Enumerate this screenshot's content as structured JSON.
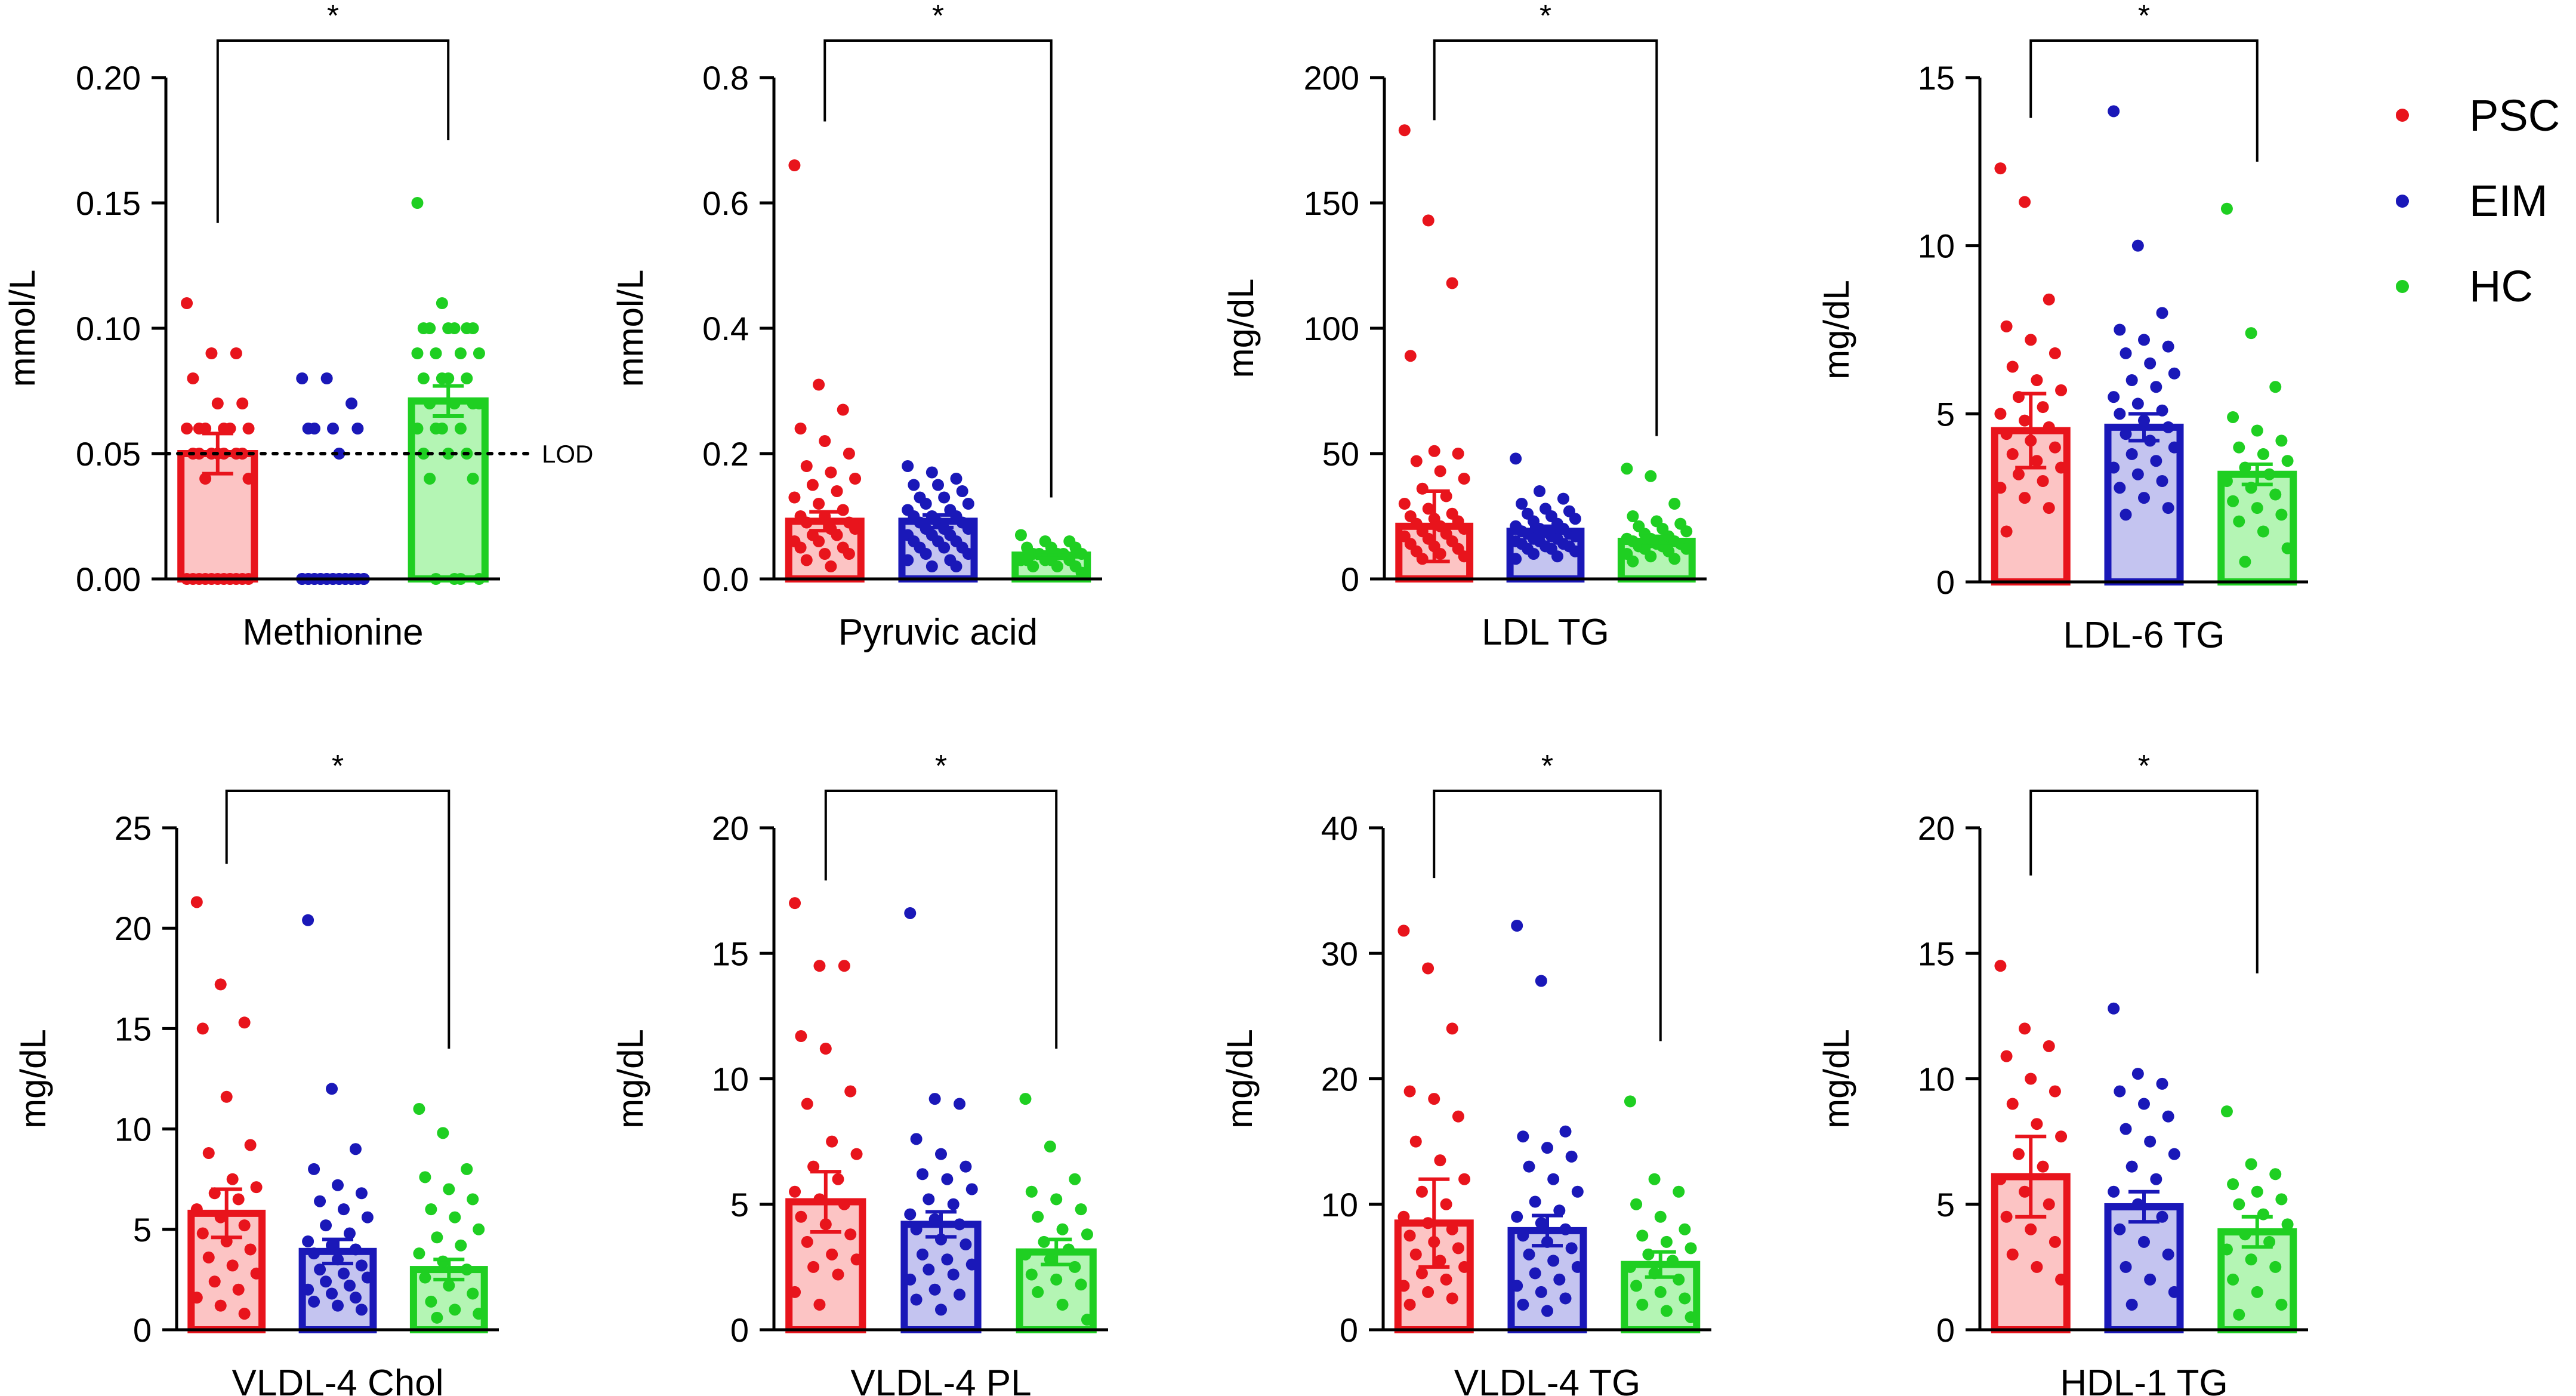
{
  "legend": [
    {
      "label": "PSC",
      "color": "#e8141c"
    },
    {
      "label": "EIM",
      "color": "#1a18b8"
    },
    {
      "label": "HC",
      "color": "#1fcf22"
    }
  ],
  "fill_colors": [
    "#fcc4c4",
    "#c4c4f0",
    "#b4f5b4"
  ],
  "chart_data": [
    {
      "type": "bar",
      "title": "Methionine",
      "ylabel": "mmol/L",
      "ylim": [
        0,
        0.2
      ],
      "ticks": [
        0,
        0.05,
        0.1,
        0.15,
        0.2
      ],
      "tick_labels": [
        "0.00",
        "0.05",
        "0.10",
        "0.15",
        "0.20"
      ],
      "categories": [
        "PSC",
        "EIM",
        "HC"
      ],
      "values": [
        0.05,
        0,
        0.071
      ],
      "error": [
        0.008,
        0,
        0.006
      ],
      "points": [
        [
          0.11,
          0.09,
          0.09,
          0.08,
          0.07,
          0.07,
          0.06,
          0.06,
          0.06,
          0.06,
          0.06,
          0.06,
          0.05,
          0.05,
          0.05,
          0.05,
          0.05,
          0.05,
          0.05,
          0.04,
          0.04,
          0,
          0,
          0,
          0,
          0,
          0,
          0,
          0,
          0,
          0,
          0,
          0
        ],
        [
          0.08,
          0.08,
          0.07,
          0.06,
          0.06,
          0.06,
          0.06,
          0.05,
          0,
          0,
          0,
          0,
          0,
          0,
          0,
          0,
          0,
          0,
          0,
          0,
          0,
          0,
          0,
          0,
          0,
          0,
          0,
          0,
          0,
          0
        ],
        [
          0.15,
          0.11,
          0.1,
          0.1,
          0.1,
          0.1,
          0.1,
          0.1,
          0.09,
          0.09,
          0.09,
          0.09,
          0.08,
          0.08,
          0.08,
          0.08,
          0.07,
          0.07,
          0.07,
          0.07,
          0.06,
          0.06,
          0.06,
          0.06,
          0.05,
          0.05,
          0.05,
          0.04,
          0.04,
          0,
          0,
          0,
          0
        ]
      ],
      "bracket": {
        "label": "*",
        "from": 0,
        "to": 2,
        "left_drop": 0.142,
        "right_drop": 0.175
      },
      "reference": {
        "label": "LOD",
        "value": 0.05
      }
    },
    {
      "type": "bar",
      "title": "Pyruvic acid",
      "ylabel": "mmol/L",
      "ylim": [
        0,
        0.8
      ],
      "ticks": [
        0,
        0.2,
        0.4,
        0.6,
        0.8
      ],
      "tick_labels": [
        "0.0",
        "0.2",
        "0.4",
        "0.6",
        "0.8"
      ],
      "categories": [
        "PSC",
        "EIM",
        "HC"
      ],
      "values": [
        0.092,
        0.092,
        0.038
      ],
      "error": [
        0.015,
        0.01,
        0.005
      ],
      "points": [
        [
          0.66,
          0.31,
          0.27,
          0.24,
          0.22,
          0.2,
          0.18,
          0.17,
          0.16,
          0.15,
          0.14,
          0.13,
          0.12,
          0.11,
          0.1,
          0.1,
          0.09,
          0.09,
          0.08,
          0.08,
          0.07,
          0.07,
          0.06,
          0.06,
          0.05,
          0.05,
          0.04,
          0.04,
          0.03,
          0.02
        ],
        [
          0.18,
          0.17,
          0.16,
          0.15,
          0.15,
          0.14,
          0.13,
          0.13,
          0.12,
          0.12,
          0.11,
          0.11,
          0.1,
          0.1,
          0.1,
          0.09,
          0.09,
          0.09,
          0.08,
          0.08,
          0.08,
          0.07,
          0.07,
          0.07,
          0.06,
          0.06,
          0.06,
          0.05,
          0.05,
          0.05,
          0.04,
          0.04,
          0.03,
          0.03,
          0.02,
          0.02
        ],
        [
          0.07,
          0.06,
          0.06,
          0.05,
          0.05,
          0.05,
          0.04,
          0.04,
          0.04,
          0.04,
          0.04,
          0.03,
          0.03,
          0.03,
          0.03,
          0.03,
          0.02,
          0.02,
          0.02,
          0.01
        ]
      ],
      "bracket": {
        "label": "*",
        "from": 0,
        "to": 2,
        "left_drop": 0.73,
        "right_drop": 0.13
      }
    },
    {
      "type": "bar",
      "title": "LDL TG",
      "ylabel": "mg/dL",
      "ylim": [
        0,
        200
      ],
      "ticks": [
        0,
        50,
        100,
        150,
        200
      ],
      "tick_labels": [
        "0",
        "50",
        "100",
        "150",
        "200"
      ],
      "categories": [
        "PSC",
        "EIM",
        "HC"
      ],
      "values": [
        21,
        19,
        15
      ],
      "error": [
        14,
        2,
        2
      ],
      "points": [
        [
          179,
          143,
          118,
          89,
          51,
          50,
          47,
          43,
          40,
          36,
          33,
          30,
          28,
          26,
          25,
          24,
          23,
          22,
          21,
          20,
          19,
          18,
          17,
          16,
          15,
          14,
          13,
          12,
          11,
          10,
          9,
          8
        ],
        [
          48,
          35,
          32,
          30,
          28,
          27,
          26,
          25,
          24,
          23,
          22,
          21,
          20,
          20,
          19,
          19,
          18,
          18,
          17,
          17,
          16,
          16,
          15,
          15,
          14,
          14,
          13,
          13,
          12,
          12,
          11,
          10,
          9,
          8
        ],
        [
          44,
          41,
          30,
          25,
          23,
          22,
          21,
          20,
          19,
          18,
          17,
          16,
          16,
          15,
          15,
          14,
          14,
          13,
          13,
          12,
          12,
          11,
          10,
          9,
          8,
          7
        ]
      ],
      "bracket": {
        "label": "*",
        "from": 0,
        "to": 2,
        "left_drop": 183,
        "right_drop": 57
      }
    },
    {
      "type": "bar",
      "title": "LDL-6 TG",
      "ylabel": "mg/dL",
      "ylim": [
        0,
        15
      ],
      "ticks": [
        0,
        5,
        10,
        15
      ],
      "tick_labels": [
        "0",
        "5",
        "10",
        "15"
      ],
      "categories": [
        "PSC",
        "EIM",
        "HC"
      ],
      "values": [
        4.5,
        4.6,
        3.2
      ],
      "error": [
        1.1,
        0.4,
        0.3
      ],
      "points": [
        [
          12.3,
          11.3,
          8.4,
          7.6,
          7.2,
          6.8,
          6.4,
          6.0,
          5.7,
          5.5,
          5.2,
          5.0,
          4.8,
          4.6,
          4.4,
          4.2,
          4.0,
          3.8,
          3.6,
          3.4,
          3.2,
          3.0,
          2.8,
          2.5,
          2.2,
          1.5
        ],
        [
          14.0,
          10.0,
          8.0,
          7.5,
          7.2,
          7.0,
          6.8,
          6.5,
          6.2,
          6.0,
          5.8,
          5.5,
          5.3,
          5.1,
          5.0,
          4.8,
          4.6,
          4.4,
          4.2,
          4.0,
          3.8,
          3.6,
          3.4,
          3.2,
          3.0,
          2.8,
          2.5,
          2.2,
          2.0
        ],
        [
          11.1,
          7.4,
          5.8,
          4.9,
          4.5,
          4.2,
          4.0,
          3.8,
          3.6,
          3.4,
          3.2,
          3.0,
          2.8,
          2.6,
          2.4,
          2.2,
          2.0,
          1.8,
          1.5,
          1.0,
          0.6
        ]
      ],
      "bracket": {
        "label": "*",
        "from": 0,
        "to": 2,
        "left_drop": 13.8,
        "right_drop": 12.5
      }
    },
    {
      "type": "bar",
      "title": "VLDL-4 Chol",
      "ylabel": "mg/dL",
      "ylim": [
        0,
        25
      ],
      "ticks": [
        0,
        5,
        10,
        15,
        20,
        25
      ],
      "tick_labels": [
        "0",
        "5",
        "10",
        "15",
        "20",
        "25"
      ],
      "categories": [
        "PSC",
        "EIM",
        "HC"
      ],
      "values": [
        5.8,
        3.9,
        3.0
      ],
      "error": [
        1.2,
        0.6,
        0.5
      ],
      "points": [
        [
          21.3,
          17.2,
          15.3,
          15.0,
          11.6,
          9.2,
          8.8,
          7.5,
          7.1,
          6.8,
          6.5,
          6.0,
          5.6,
          5.2,
          4.8,
          4.4,
          4.0,
          3.6,
          3.2,
          2.8,
          2.4,
          2.0,
          1.6,
          1.2,
          0.8
        ],
        [
          20.4,
          12.0,
          9.0,
          8.0,
          7.2,
          6.8,
          6.4,
          6.0,
          5.6,
          5.2,
          4.8,
          4.4,
          4.2,
          4.0,
          3.8,
          3.5,
          3.2,
          3.0,
          2.8,
          2.6,
          2.4,
          2.2,
          2.0,
          1.8,
          1.6,
          1.4,
          1.2,
          1.0
        ],
        [
          11.0,
          9.8,
          8.0,
          7.6,
          7.0,
          6.5,
          6.0,
          5.6,
          5.0,
          4.6,
          4.2,
          3.8,
          3.4,
          3.0,
          2.6,
          2.2,
          1.8,
          1.4,
          1.0,
          0.8,
          0.6
        ]
      ],
      "bracket": {
        "label": "*",
        "from": 0,
        "to": 2,
        "left_drop": 23.2,
        "right_drop": 14.0
      }
    },
    {
      "type": "bar",
      "title": "VLDL-4 PL",
      "ylabel": "mg/dL",
      "ylim": [
        0,
        20
      ],
      "ticks": [
        0,
        5,
        10,
        15,
        20
      ],
      "tick_labels": [
        "0",
        "5",
        "10",
        "15",
        "20"
      ],
      "categories": [
        "PSC",
        "EIM",
        "HC"
      ],
      "values": [
        5.1,
        4.2,
        3.1
      ],
      "error": [
        1.2,
        0.5,
        0.5
      ],
      "points": [
        [
          17.0,
          14.5,
          14.5,
          11.7,
          11.2,
          9.5,
          9.0,
          7.5,
          7.0,
          6.5,
          6.0,
          5.5,
          5.2,
          5.0,
          4.5,
          4.2,
          3.8,
          3.5,
          3.0,
          2.8,
          2.5,
          2.2,
          1.5,
          1.0
        ],
        [
          16.6,
          9.2,
          9.0,
          7.6,
          7.0,
          6.5,
          6.2,
          6.0,
          5.6,
          5.2,
          5.0,
          4.6,
          4.4,
          4.2,
          4.0,
          3.6,
          3.4,
          3.0,
          2.8,
          2.6,
          2.4,
          2.2,
          2.0,
          1.6,
          1.4,
          1.2,
          0.8
        ],
        [
          9.2,
          7.3,
          6.0,
          5.5,
          5.2,
          4.8,
          4.5,
          4.0,
          3.8,
          3.5,
          3.2,
          3.0,
          2.8,
          2.5,
          2.2,
          2.0,
          1.8,
          1.5,
          1.0,
          0.4
        ]
      ],
      "bracket": {
        "label": "*",
        "from": 0,
        "to": 2,
        "left_drop": 17.9,
        "right_drop": 11.2
      }
    },
    {
      "type": "bar",
      "title": "VLDL-4 TG",
      "ylabel": "mg/dL",
      "ylim": [
        0,
        40
      ],
      "ticks": [
        0,
        10,
        20,
        30,
        40
      ],
      "tick_labels": [
        "0",
        "10",
        "20",
        "30",
        "40"
      ],
      "categories": [
        "PSC",
        "EIM",
        "HC"
      ],
      "values": [
        8.5,
        7.9,
        5.2
      ],
      "error": [
        3.5,
        1.2,
        1.0
      ],
      "points": [
        [
          31.8,
          28.8,
          24.0,
          19.0,
          18.4,
          17.0,
          15.0,
          13.5,
          12.0,
          11.0,
          10.0,
          9.0,
          8.5,
          8.0,
          7.5,
          7.0,
          6.5,
          6.0,
          5.5,
          5.0,
          4.5,
          4.0,
          3.5,
          3.0,
          2.5,
          2.0
        ],
        [
          32.2,
          27.8,
          15.8,
          15.4,
          14.5,
          13.8,
          13.0,
          12.0,
          11.0,
          10.2,
          9.5,
          9.0,
          8.5,
          8.0,
          7.5,
          7.0,
          6.5,
          6.0,
          5.5,
          5.0,
          4.5,
          4.0,
          3.5,
          3.0,
          2.5,
          2.0,
          1.5
        ],
        [
          18.2,
          12.0,
          11.0,
          10.0,
          9.0,
          8.0,
          7.5,
          7.0,
          6.5,
          6.0,
          5.5,
          5.0,
          4.5,
          4.0,
          3.5,
          3.0,
          2.5,
          2.0,
          1.5,
          1.0
        ]
      ],
      "bracket": {
        "label": "*",
        "from": 0,
        "to": 2,
        "left_drop": 36.0,
        "right_drop": 23.0
      }
    },
    {
      "type": "bar",
      "title": "HDL-1 TG",
      "ylabel": "mg/dL",
      "ylim": [
        0,
        20
      ],
      "ticks": [
        0,
        5,
        10,
        15,
        20
      ],
      "tick_labels": [
        "0",
        "5",
        "10",
        "15",
        "20"
      ],
      "categories": [
        "PSC",
        "EIM",
        "HC"
      ],
      "values": [
        6.1,
        4.9,
        3.9
      ],
      "error": [
        1.6,
        0.6,
        0.6
      ],
      "points": [
        [
          14.5,
          12.0,
          11.3,
          10.9,
          10.0,
          9.5,
          9.0,
          8.2,
          7.7,
          7.0,
          6.5,
          6.0,
          5.5,
          5.0,
          4.5,
          4.0,
          3.5,
          3.0,
          2.5,
          2.0
        ],
        [
          12.8,
          10.2,
          9.8,
          9.5,
          9.0,
          8.5,
          8.0,
          7.5,
          7.0,
          6.5,
          6.0,
          5.5,
          5.0,
          4.5,
          4.0,
          3.5,
          3.0,
          2.5,
          2.0,
          1.5,
          1.0
        ],
        [
          8.7,
          6.6,
          6.2,
          5.8,
          5.5,
          5.2,
          5.0,
          4.6,
          4.2,
          3.8,
          3.5,
          3.2,
          2.8,
          2.5,
          2.0,
          1.5,
          1.0,
          0.6
        ]
      ],
      "bracket": {
        "label": "*",
        "from": 0,
        "to": 2,
        "left_drop": 18.1,
        "right_drop": 14.2
      }
    }
  ]
}
